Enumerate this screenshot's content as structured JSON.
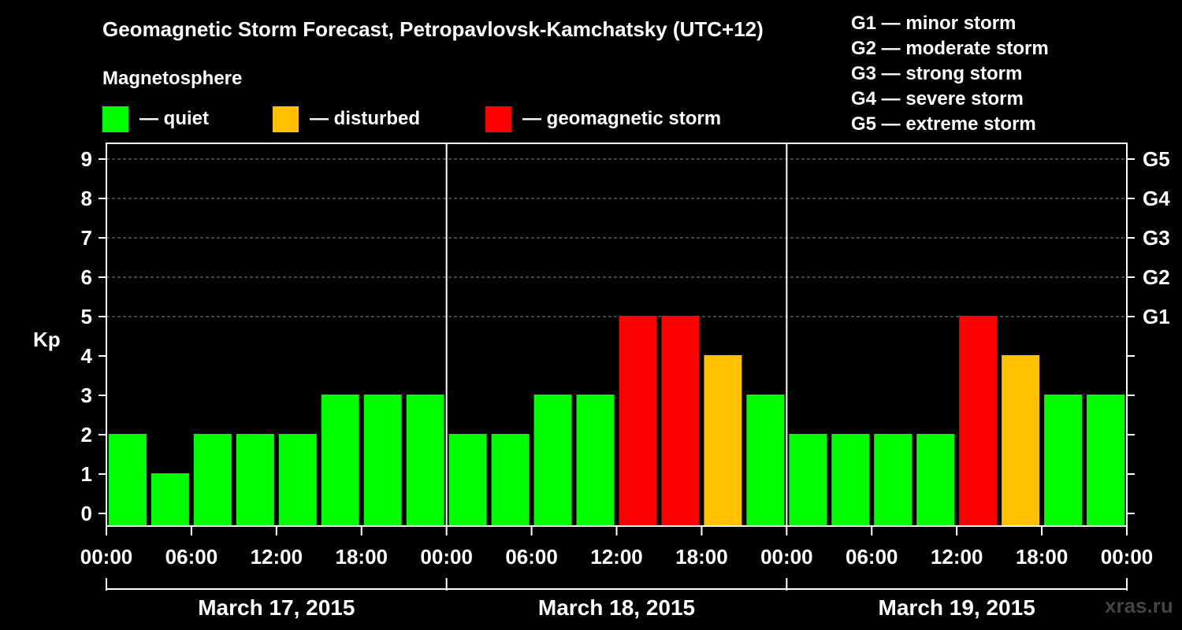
{
  "chart_data": {
    "type": "bar",
    "title": "Geomagnetic Storm Forecast, Petropavlovsk-Kamchatsky (UTC+12)",
    "ylabel": "Kp",
    "ylim": [
      0,
      9
    ],
    "yticks": [
      "0",
      "1",
      "2",
      "3",
      "4",
      "5",
      "6",
      "7",
      "8",
      "9"
    ],
    "right_axis_labels": [
      {
        "kp": 5,
        "label": "G1"
      },
      {
        "kp": 6,
        "label": "G2"
      },
      {
        "kp": 7,
        "label": "G3"
      },
      {
        "kp": 8,
        "label": "G4"
      },
      {
        "kp": 9,
        "label": "G5"
      }
    ],
    "xticks": [
      "00:00",
      "06:00",
      "12:00",
      "18:00",
      "00:00",
      "06:00",
      "12:00",
      "18:00",
      "00:00",
      "06:00",
      "12:00",
      "18:00",
      "00:00"
    ],
    "days": [
      "March 17, 2015",
      "March 18, 2015",
      "March 19, 2015"
    ],
    "interval_hours": 3,
    "values": [
      2,
      1,
      2,
      2,
      2,
      3,
      3,
      3,
      2,
      2,
      3,
      3,
      5,
      5,
      4,
      3,
      2,
      2,
      2,
      2,
      5,
      4,
      3,
      3
    ],
    "categories_status": [
      "quiet",
      "quiet",
      "quiet",
      "quiet",
      "quiet",
      "quiet",
      "quiet",
      "quiet",
      "quiet",
      "quiet",
      "quiet",
      "quiet",
      "storm",
      "storm",
      "disturbed",
      "quiet",
      "quiet",
      "quiet",
      "quiet",
      "quiet",
      "storm",
      "disturbed",
      "quiet",
      "quiet"
    ],
    "grid": true
  },
  "legend": {
    "heading": "Magnetosphere",
    "items": [
      {
        "key": "quiet",
        "label": "— quiet",
        "color": "#00ff00"
      },
      {
        "key": "disturbed",
        "label": "— disturbed",
        "color": "#ffc000"
      },
      {
        "key": "storm",
        "label": "— geomagnetic storm",
        "color": "#ff0000"
      }
    ]
  },
  "storm_scale": [
    "G1 — minor storm",
    "G2 — moderate storm",
    "G3 — strong storm",
    "G4 — severe storm",
    "G5 — extreme storm"
  ],
  "watermark": "xras.ru",
  "colors": {
    "background": "#000000",
    "axis": "#ffffff",
    "grid": "#888888"
  }
}
